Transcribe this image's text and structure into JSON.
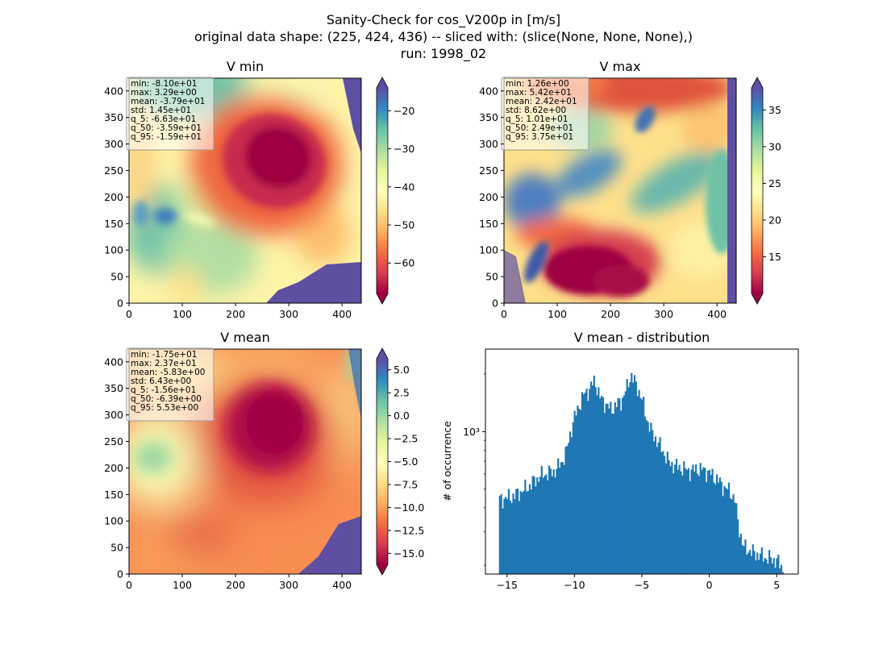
{
  "figure": {
    "title_lines": [
      "Sanity-Check for cos_V200p in [m/s]",
      "original data shape: (225, 424, 436) -- sliced with: (slice(None, None, None),)",
      "run: 1998_02"
    ]
  },
  "chart_data": [
    {
      "type": "heatmap",
      "title": "V min",
      "colormap": "Spectral",
      "extend": "both",
      "xlim": [
        0,
        436
      ],
      "ylim": [
        0,
        424
      ],
      "xticks": [
        0,
        100,
        200,
        300,
        400
      ],
      "yticks": [
        0,
        50,
        100,
        150,
        200,
        250,
        300,
        350,
        400
      ],
      "colorbar": {
        "range": [
          -68,
          -14
        ],
        "ticks": [
          -60,
          -50,
          -40,
          -30,
          -20
        ],
        "tick_labels": [
          "−60",
          "−50",
          "−40",
          "−30",
          "−20"
        ]
      },
      "stats": [
        "min: -8.10e+01",
        "max: 3.29e+00",
        "mean: -3.79e+01",
        "std: 1.45e+01",
        "q_5: -6.63e+01",
        "q_50: -3.59e+01",
        "q_95: -1.59e+01"
      ]
    },
    {
      "type": "heatmap",
      "title": "V max",
      "colormap": "Spectral",
      "extend": "both",
      "xlim": [
        0,
        436
      ],
      "ylim": [
        0,
        424
      ],
      "xticks": [
        0,
        100,
        200,
        300,
        400
      ],
      "yticks": [
        0,
        50,
        100,
        150,
        200,
        250,
        300,
        350,
        400
      ],
      "colorbar": {
        "range": [
          10,
          38
        ],
        "ticks": [
          15,
          20,
          25,
          30,
          35
        ],
        "tick_labels": [
          "15",
          "20",
          "25",
          "30",
          "35"
        ]
      },
      "stats": [
        "min: 1.26e+00",
        "max: 5.42e+01",
        "mean: 2.42e+01",
        "std: 8.62e+00",
        "q_5: 1.01e+01",
        "q_50: 2.49e+01",
        "q_95: 3.75e+01"
      ]
    },
    {
      "type": "heatmap",
      "title": "V mean",
      "colormap": "Spectral",
      "extend": "both",
      "xlim": [
        0,
        436
      ],
      "ylim": [
        0,
        424
      ],
      "xticks": [
        0,
        100,
        200,
        300,
        400
      ],
      "yticks": [
        0,
        50,
        100,
        150,
        200,
        250,
        300,
        350,
        400
      ],
      "colorbar": {
        "range": [
          -16.2,
          6.2
        ],
        "ticks": [
          -15,
          -12.5,
          -10,
          -7.5,
          -5,
          -2.5,
          0,
          2.5,
          5
        ],
        "tick_labels": [
          "−15.0",
          "−12.5",
          "−10.0",
          "−7.5",
          "−5.0",
          "−2.5",
          "0.0",
          "2.5",
          "5.0"
        ]
      },
      "stats": [
        "min: -1.75e+01",
        "max: 2.37e+01",
        "mean: -5.83e+00",
        "std: 6.43e+00",
        "q_5: -1.56e+01",
        "q_50: -6.39e+00",
        "q_95: 5.53e+00"
      ]
    },
    {
      "type": "bar",
      "title": "V mean - distribution",
      "xlabel": "",
      "ylabel": "# of occurrence",
      "yscale": "log",
      "color": "#1f77b4",
      "xlim": [
        -16.6,
        6.6
      ],
      "ylim": [
        180,
        2700
      ],
      "xticks": [
        -15,
        -10,
        -5,
        0,
        5
      ],
      "xtick_labels": [
        "−15",
        "−10",
        "−5",
        "0",
        "5"
      ],
      "yticks": [
        1000
      ],
      "ytick_labels": [
        "10³"
      ],
      "bin_range": [
        -15.6,
        5.5
      ],
      "profile": [
        [
          -15.6,
          440
        ],
        [
          -14.5,
          460
        ],
        [
          -13.5,
          510
        ],
        [
          -12.5,
          590
        ],
        [
          -11.5,
          620
        ],
        [
          -11,
          680
        ],
        [
          -10.6,
          780
        ],
        [
          -10.1,
          1120
        ],
        [
          -9.7,
          1350
        ],
        [
          -9.3,
          1560
        ],
        [
          -8.9,
          1660
        ],
        [
          -8.5,
          1850
        ],
        [
          -8.1,
          1500
        ],
        [
          -7.7,
          1400
        ],
        [
          -7.3,
          1300
        ],
        [
          -6.9,
          1380
        ],
        [
          -6.5,
          1450
        ],
        [
          -6.1,
          1700
        ],
        [
          -5.8,
          2000
        ],
        [
          -5.5,
          1780
        ],
        [
          -5.1,
          1560
        ],
        [
          -4.7,
          1200
        ],
        [
          -4.3,
          1000
        ],
        [
          -3.9,
          900
        ],
        [
          -3.4,
          780
        ],
        [
          -3,
          690
        ],
        [
          -2.5,
          660
        ],
        [
          -1.9,
          640
        ],
        [
          -1.4,
          620
        ],
        [
          -0.9,
          640
        ],
        [
          -0.4,
          630
        ],
        [
          0.1,
          600
        ],
        [
          0.6,
          560
        ],
        [
          1.1,
          510
        ],
        [
          1.5,
          490
        ],
        [
          1.9,
          440
        ],
        [
          2.1,
          340
        ],
        [
          2.5,
          250
        ],
        [
          3.3,
          232
        ],
        [
          4.3,
          218
        ],
        [
          5,
          212
        ],
        [
          5.5,
          190
        ]
      ]
    }
  ]
}
